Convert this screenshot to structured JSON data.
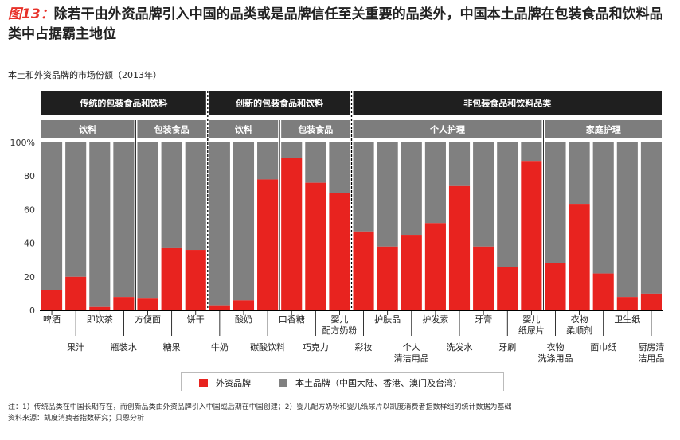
{
  "header": {
    "figure_label": "图13：",
    "title": "除若干由外资品牌引入中国的品类或是品牌信任至关重要的品类外，中国本土品牌在包装食品和饮料品类中占据霸主地位",
    "subtitle": "本土和外资品牌的市场份额（2013年）"
  },
  "legend": {
    "foreign_label": "外资品牌",
    "local_label": "本土品牌（中国大陆、香港、澳门及台湾）"
  },
  "notes": {
    "line1": "注：1）传统品类在中国长期存在，而创新品类由外资品牌引入中国或后期在中国创建；2）婴儿配方奶粉和婴儿纸尿片以凯度消费者指数样组的统计数据为基础",
    "line2": "资料来源：凯度消费者指数研究；贝恩分析"
  },
  "colors": {
    "foreign": "#e8231f",
    "local": "#808080",
    "top_header": "#1f1f1f",
    "sub_header": "#7d7d7d"
  },
  "chart_data": {
    "type": "bar",
    "stacked": true,
    "title": "本土和外资品牌的市场份额（2013年）",
    "ylim": [
      0,
      100
    ],
    "ytick_labels": [
      "0",
      "20",
      "40",
      "60",
      "80",
      "100%"
    ],
    "categories": [
      "啤酒",
      "果汁",
      "即饮茶",
      "瓶装水",
      "方便面",
      "糖果",
      "饼干",
      "牛奶",
      "酸奶",
      "碳酸饮料",
      "口香糖",
      "巧克力",
      "婴儿配方奶粉",
      "彩妆",
      "护肤品",
      "个人清洁用品",
      "护发素",
      "洗发水",
      "牙膏",
      "牙刷",
      "婴儿纸尿片",
      "衣物洗涤用品",
      "衣物柔顺剂",
      "面巾纸",
      "卫生纸",
      "厨房清洁用品"
    ],
    "label_lines": [
      [
        "啤酒"
      ],
      [
        "果汁"
      ],
      [
        "即饮茶"
      ],
      [
        "瓶装水"
      ],
      [
        "方便面"
      ],
      [
        "糖果"
      ],
      [
        "饼干"
      ],
      [
        "牛奶"
      ],
      [
        "酸奶"
      ],
      [
        "碳酸饮料"
      ],
      [
        "口香糖"
      ],
      [
        "巧克力"
      ],
      [
        "婴儿",
        "配方奶粉"
      ],
      [
        "彩妆"
      ],
      [
        "护肤品"
      ],
      [
        "个人",
        "清洁用品"
      ],
      [
        "护发素"
      ],
      [
        "洗发水"
      ],
      [
        "牙膏"
      ],
      [
        "牙刷"
      ],
      [
        "婴儿",
        "纸尿片"
      ],
      [
        "衣物",
        "洗涤用品"
      ],
      [
        "衣物",
        "柔顺剂"
      ],
      [
        "面巾纸"
      ],
      [
        "卫生纸"
      ],
      [
        "厨房清",
        "洁用品"
      ]
    ],
    "series": [
      {
        "name": "外资品牌",
        "values": [
          12,
          20,
          2,
          8,
          7,
          37,
          36,
          3,
          6,
          78,
          91,
          76,
          70,
          47,
          38,
          45,
          52,
          74,
          38,
          26,
          89,
          28,
          63,
          22,
          8,
          10
        ]
      },
      {
        "name": "本土品牌（中国大陆、香港、澳门及台湾）",
        "values": [
          88,
          80,
          98,
          92,
          93,
          63,
          64,
          97,
          94,
          22,
          9,
          24,
          30,
          53,
          62,
          55,
          48,
          26,
          62,
          74,
          11,
          72,
          37,
          78,
          92,
          90
        ]
      }
    ],
    "groups": [
      {
        "label": "传统的包装食品和饮料",
        "start": 0,
        "end": 6
      },
      {
        "label": "创新的包装食品和饮料",
        "start": 7,
        "end": 12
      },
      {
        "label": "非包装食品和饮料品类",
        "start": 13,
        "end": 25
      }
    ],
    "subgroups": [
      {
        "label": "饮料",
        "start": 0,
        "end": 3
      },
      {
        "label": "包装食品",
        "start": 4,
        "end": 6
      },
      {
        "label": "饮料",
        "start": 7,
        "end": 9
      },
      {
        "label": "包装食品",
        "start": 10,
        "end": 12
      },
      {
        "label": "个人护理",
        "start": 13,
        "end": 20
      },
      {
        "label": "家庭护理",
        "start": 21,
        "end": 25
      }
    ]
  }
}
